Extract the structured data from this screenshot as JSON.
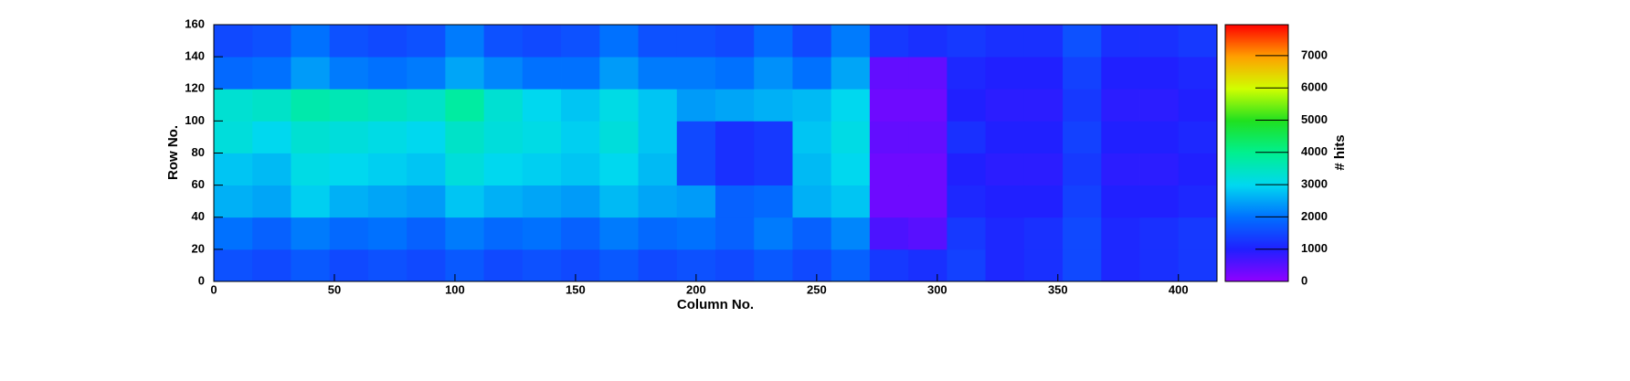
{
  "chart_data": {
    "type": "heatmap",
    "xlabel": "Column No.",
    "ylabel": "Row No.",
    "zlabel": "# hits",
    "xbins": [
      0,
      16,
      32,
      48,
      64,
      80,
      96,
      112,
      128,
      144,
      160,
      176,
      192,
      208,
      224,
      240,
      256,
      272,
      288,
      304,
      320,
      336,
      352,
      368,
      384,
      400,
      416
    ],
    "ybins": [
      0,
      20,
      40,
      60,
      80,
      100,
      120,
      140,
      160
    ],
    "z": [
      [
        1600,
        1500,
        1700,
        1500,
        1600,
        1500,
        1700,
        1500,
        1600,
        1500,
        1700,
        1500,
        1600,
        1500,
        1700,
        1500,
        1800,
        1300,
        1200,
        1400,
        1100,
        1200,
        1500,
        1100,
        1200,
        1300
      ],
      [
        2000,
        1800,
        2100,
        1900,
        2000,
        1800,
        2100,
        1900,
        2000,
        1800,
        2100,
        1900,
        2000,
        1800,
        2100,
        1800,
        2200,
        600,
        500,
        1300,
        1100,
        1200,
        1500,
        1100,
        1200,
        1300
      ],
      [
        2600,
        2500,
        2900,
        2600,
        2500,
        2400,
        2800,
        2600,
        2500,
        2400,
        2700,
        2500,
        2400,
        1800,
        1900,
        2600,
        2800,
        300,
        300,
        1100,
        1000,
        1000,
        1400,
        1000,
        1000,
        1100
      ],
      [
        2800,
        2700,
        3100,
        3000,
        2900,
        2800,
        3200,
        3000,
        2900,
        2800,
        3000,
        2700,
        1500,
        1200,
        1300,
        2700,
        3000,
        300,
        300,
        1000,
        900,
        900,
        1300,
        900,
        900,
        1000
      ],
      [
        3200,
        3000,
        3300,
        3200,
        3100,
        3000,
        3400,
        3200,
        3100,
        2900,
        3200,
        2800,
        1500,
        1200,
        1300,
        2800,
        3100,
        400,
        400,
        1200,
        1000,
        1000,
        1400,
        1000,
        1000,
        1100
      ],
      [
        3300,
        3400,
        3700,
        3600,
        3500,
        3400,
        3800,
        3300,
        3000,
        2800,
        3100,
        2800,
        2400,
        2500,
        2600,
        2700,
        3000,
        300,
        300,
        1000,
        900,
        900,
        1300,
        900,
        900,
        1000
      ],
      [
        1900,
        2000,
        2400,
        2100,
        2000,
        2100,
        2500,
        2200,
        2000,
        2000,
        2400,
        2100,
        2100,
        2000,
        2300,
        2000,
        2500,
        400,
        400,
        1100,
        1000,
        1000,
        1400,
        1000,
        1000,
        1100
      ],
      [
        1500,
        1600,
        2000,
        1600,
        1500,
        1600,
        2100,
        1600,
        1500,
        1600,
        2000,
        1600,
        1600,
        1500,
        1900,
        1500,
        2100,
        1300,
        1200,
        1300,
        1200,
        1200,
        1600,
        1200,
        1200,
        1300
      ]
    ],
    "xlim": [
      0,
      416
    ],
    "ylim": [
      0,
      160
    ],
    "zlim": [
      0,
      7960
    ],
    "xticks": [
      0,
      50,
      100,
      150,
      200,
      250,
      300,
      350,
      400
    ],
    "yticks": [
      0,
      20,
      40,
      60,
      80,
      100,
      120,
      140,
      160
    ],
    "zticks": [
      0,
      1000,
      2000,
      3000,
      4000,
      5000,
      6000,
      7000
    ],
    "colormap": [
      "#9000ff",
      "#2020ff",
      "#0070ff",
      "#00d8f0",
      "#00f090",
      "#20e020",
      "#d0ff00",
      "#ffa000",
      "#ff0000"
    ]
  }
}
